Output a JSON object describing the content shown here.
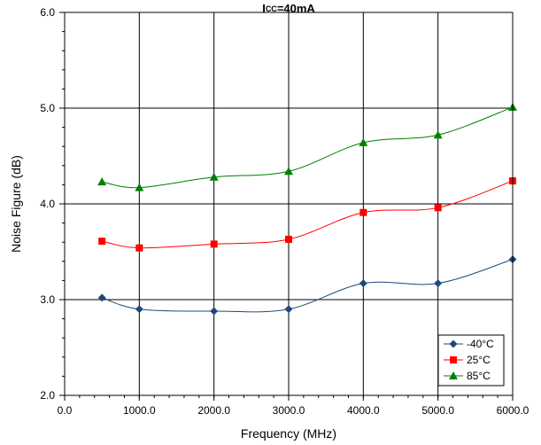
{
  "chart_data": {
    "type": "line",
    "title_main": "I",
    "title_sub": "CC",
    "title_rest": "=40mA",
    "xlabel": "Frequency (MHz)",
    "ylabel": "Noise Figure (dB)",
    "xlim": [
      0,
      6000
    ],
    "ylim": [
      2.0,
      6.0
    ],
    "x_ticks": [
      0,
      1000,
      2000,
      3000,
      4000,
      5000,
      6000
    ],
    "x_tick_labels": [
      "0.0",
      "1000.0",
      "2000.0",
      "3000.0",
      "4000.0",
      "5000.0",
      "6000.0"
    ],
    "y_ticks": [
      2.0,
      3.0,
      4.0,
      5.0,
      6.0
    ],
    "y_tick_labels": [
      "2.0",
      "3.0",
      "4.0",
      "5.0",
      "6.0"
    ],
    "x_minor_step": 200,
    "y_minor_step": 0.2,
    "grid": true,
    "legend_position": "bottom-right",
    "x": [
      500,
      1000,
      2000,
      3000,
      4000,
      5000,
      6000
    ],
    "series": [
      {
        "name": "-40°C",
        "color": "#1F497D",
        "marker": "diamond",
        "values": [
          3.02,
          2.9,
          2.88,
          2.9,
          3.17,
          3.17,
          3.42
        ]
      },
      {
        "name": "25°C",
        "color": "#FF0000",
        "marker": "square",
        "values": [
          3.61,
          3.54,
          3.58,
          3.63,
          3.91,
          3.96,
          4.24
        ]
      },
      {
        "name": "85°C",
        "color": "#008000",
        "marker": "triangle",
        "values": [
          4.23,
          4.17,
          4.28,
          4.34,
          4.64,
          4.72,
          5.01
        ]
      }
    ]
  }
}
